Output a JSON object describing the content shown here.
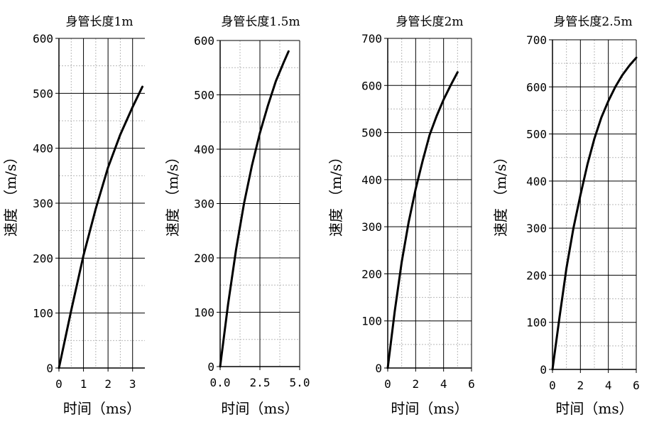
{
  "chart_data": [
    {
      "type": "line",
      "title": "身管长度1m",
      "xlabel": "时间（ms）",
      "ylabel": "速度 （m/s）",
      "xlim": [
        0,
        3.5
      ],
      "ylim": [
        0,
        600
      ],
      "xticks": [
        0,
        1,
        2,
        3
      ],
      "xtick_labels": [
        "0",
        "1",
        "2",
        "3"
      ],
      "yticks": [
        0,
        100,
        200,
        300,
        400,
        500,
        600
      ],
      "ytick_labels": [
        "0",
        "100",
        "200",
        "300",
        "400",
        "500",
        "600"
      ],
      "grid": true,
      "series": [
        {
          "x": [
            0,
            0.5,
            1.0,
            1.5,
            2.0,
            2.5,
            3.0,
            3.4
          ],
          "y": [
            0,
            105,
            205,
            290,
            365,
            425,
            475,
            512
          ]
        }
      ]
    },
    {
      "type": "line",
      "title": "身管长度1.5m",
      "xlabel": "时间（ms）",
      "ylabel": "速度 （m/s）",
      "xlim": [
        0,
        5.0
      ],
      "ylim": [
        0,
        600
      ],
      "xticks": [
        0,
        2.5,
        5.0
      ],
      "xtick_labels": [
        "0.0",
        "2.5",
        "5.0"
      ],
      "yticks": [
        0,
        100,
        200,
        300,
        400,
        500,
        600
      ],
      "ytick_labels": [
        "0",
        "100",
        "200",
        "300",
        "400",
        "500",
        "600"
      ],
      "grid": true,
      "series": [
        {
          "x": [
            0,
            0.5,
            1.0,
            1.5,
            2.0,
            2.5,
            3.0,
            3.5,
            4.0,
            4.3
          ],
          "y": [
            0,
            115,
            215,
            300,
            370,
            430,
            480,
            525,
            560,
            580
          ]
        }
      ]
    },
    {
      "type": "line",
      "title": "身管长度2m",
      "xlabel": "时间（ms）",
      "ylabel": "速度 （m/s）",
      "xlim": [
        0,
        6
      ],
      "ylim": [
        0,
        700
      ],
      "xticks": [
        0,
        2,
        4,
        6
      ],
      "xtick_labels": [
        "0",
        "2",
        "4",
        "6"
      ],
      "yticks": [
        0,
        100,
        200,
        300,
        400,
        500,
        600,
        700
      ],
      "ytick_labels": [
        "0",
        "100",
        "200",
        "300",
        "400",
        "500",
        "600",
        "700"
      ],
      "grid": true,
      "series": [
        {
          "x": [
            0,
            0.5,
            1.0,
            1.5,
            2.0,
            2.5,
            3.0,
            3.5,
            4.0,
            4.5,
            5.0
          ],
          "y": [
            0,
            120,
            225,
            310,
            380,
            440,
            495,
            535,
            570,
            600,
            628
          ]
        }
      ]
    },
    {
      "type": "line",
      "title": "身管长度2.5m",
      "xlabel": "时间（ms）",
      "ylabel": "速度 （m/s）",
      "xlim": [
        0,
        6
      ],
      "ylim": [
        0,
        700
      ],
      "xticks": [
        0,
        2,
        4,
        6
      ],
      "xtick_labels": [
        "0",
        "2",
        "4",
        "6"
      ],
      "yticks": [
        0,
        100,
        200,
        300,
        400,
        500,
        600,
        700
      ],
      "ytick_labels": [
        "0",
        "100",
        "200",
        "300",
        "400",
        "500",
        "600",
        "700"
      ],
      "grid": true,
      "series": [
        {
          "x": [
            0,
            0.5,
            1.0,
            1.5,
            2.0,
            2.5,
            3.0,
            3.5,
            4.0,
            4.5,
            5.0,
            5.5,
            6.0
          ],
          "y": [
            0,
            110,
            215,
            300,
            370,
            435,
            490,
            535,
            570,
            600,
            625,
            645,
            662
          ]
        }
      ]
    }
  ]
}
